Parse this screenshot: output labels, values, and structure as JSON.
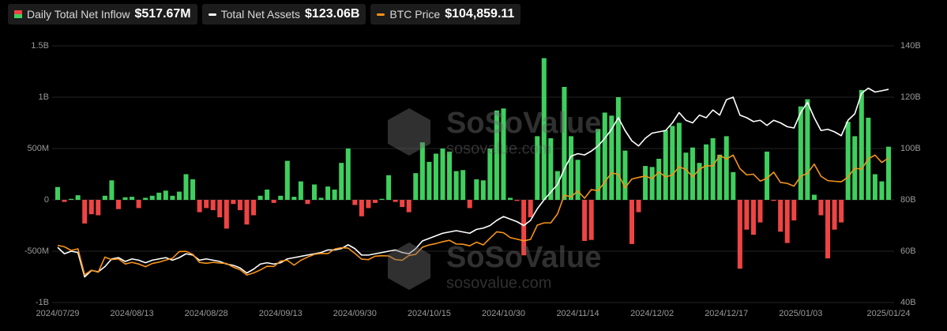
{
  "chart_data": {
    "type": "bar",
    "watermark": [
      "SoSoValue",
      "sosovalue.com"
    ],
    "categories": [
      "2024/07/29",
      null,
      null,
      null,
      null,
      null,
      null,
      null,
      null,
      null,
      null,
      "2024/08/13",
      null,
      null,
      null,
      null,
      null,
      null,
      null,
      null,
      null,
      null,
      "2024/08/28",
      null,
      null,
      null,
      null,
      null,
      null,
      null,
      null,
      null,
      null,
      "2024/09/13",
      null,
      null,
      null,
      null,
      null,
      null,
      null,
      null,
      null,
      null,
      "2024/09/30",
      null,
      null,
      null,
      null,
      null,
      null,
      null,
      null,
      null,
      null,
      "2024/10/15",
      null,
      null,
      null,
      null,
      null,
      null,
      null,
      null,
      null,
      null,
      "2024/10/30",
      null,
      null,
      null,
      null,
      null,
      null,
      null,
      null,
      null,
      null,
      "2024/11/14",
      null,
      null,
      null,
      null,
      null,
      null,
      null,
      null,
      null,
      null,
      "2024/12/02",
      null,
      null,
      null,
      null,
      null,
      null,
      null,
      null,
      null,
      null,
      "2024/12/17",
      null,
      null,
      null,
      null,
      null,
      null,
      null,
      null,
      null,
      null,
      "2025/01/03",
      null,
      null,
      null,
      null,
      null,
      null,
      null,
      null,
      null,
      null,
      null,
      null,
      "2025/01/24"
    ],
    "ylim": [
      -1000,
      1500
    ],
    "yticks": [
      {
        "value": 1500,
        "label": "1.5B"
      },
      {
        "value": 1000,
        "label": "1B"
      },
      {
        "value": 500,
        "label": "500M"
      },
      0,
      {
        "value": -500,
        "label": "-500M"
      },
      {
        "value": -1000,
        "label": "-1B"
      }
    ],
    "y2lim": [
      40,
      140
    ],
    "y2ticks": [
      {
        "value": 140,
        "label": "140B"
      },
      {
        "value": 120,
        "label": "120B"
      },
      {
        "value": 100,
        "label": "100B"
      },
      {
        "value": 80,
        "label": "80B"
      },
      {
        "value": 60,
        "label": "60B"
      },
      {
        "value": 40,
        "label": "40B"
      }
    ],
    "y3lim": [
      41900,
      153700
    ],
    "grid": true,
    "series": [
      {
        "name": "Daily Total Net Inflow",
        "legend_value": "$517.67M",
        "type": "bar",
        "color": "#3fcf5e",
        "negative_color": "#ef4444",
        "values": [
          125,
          -20,
          10,
          45,
          -230,
          -140,
          -150,
          40,
          190,
          -90,
          25,
          30,
          -80,
          20,
          40,
          70,
          90,
          40,
          80,
          250,
          200,
          -120,
          -80,
          -100,
          -170,
          -280,
          -40,
          -100,
          -240,
          -150,
          40,
          100,
          -30,
          40,
          380,
          30,
          180,
          -40,
          150,
          20,
          130,
          100,
          360,
          500,
          -50,
          -160,
          -80,
          -30,
          10,
          240,
          -20,
          -70,
          -120,
          260,
          560,
          370,
          450,
          500,
          470,
          280,
          290,
          -80,
          200,
          190,
          500,
          870,
          890,
          20,
          -10,
          -540,
          -170,
          620,
          1380,
          600,
          280,
          1100,
          620,
          390,
          -400,
          -390,
          690,
          850,
          820,
          1000,
          480,
          -430,
          -120,
          330,
          320,
          400,
          680,
          720,
          750,
          460,
          510,
          360,
          540,
          600,
          440,
          620,
          270,
          -670,
          -290,
          -340,
          -220,
          470,
          -10,
          -310,
          -420,
          -200,
          910,
          980,
          50,
          -150,
          -570,
          -290,
          -220,
          760,
          620,
          1070,
          800,
          250,
          180,
          517.67
        ]
      },
      {
        "name": "Total Net Assets",
        "legend_value": "$123.06B",
        "type": "line",
        "axis": "y2",
        "color": "#ffffff",
        "values": [
          61.5,
          59,
          60,
          59.5,
          50,
          52.5,
          52,
          54,
          57,
          57.5,
          56,
          57,
          56.5,
          55.5,
          56.5,
          57,
          57.5,
          56.5,
          57.5,
          59,
          58.5,
          56.5,
          57,
          56.5,
          56,
          55,
          54.5,
          53.5,
          51.5,
          53,
          55,
          55.5,
          55,
          55.5,
          57,
          57.5,
          58,
          58.5,
          59,
          59.5,
          60.5,
          60.5,
          61,
          62.5,
          61,
          58.5,
          58.5,
          59,
          59.5,
          60,
          60.5,
          59.5,
          59,
          61,
          64,
          65,
          66,
          67,
          67.5,
          68,
          67.5,
          67,
          68.5,
          69,
          70,
          72,
          73.5,
          72.5,
          71.5,
          70,
          72,
          76.5,
          80,
          83,
          86,
          92,
          97,
          98,
          97.5,
          99,
          101,
          104,
          107.5,
          112,
          107,
          103,
          101,
          104,
          106,
          106.5,
          107,
          110,
          114,
          111,
          110,
          113,
          112,
          115,
          113,
          119,
          120,
          113,
          112,
          110.5,
          111,
          109,
          111,
          110,
          108.5,
          108,
          114,
          118,
          112,
          107,
          107.5,
          106.5,
          105,
          111,
          113.5,
          121.5,
          123.5,
          122,
          122.5,
          123.06
        ]
      },
      {
        "name": "BTC Price",
        "legend_value": "$104,859.11",
        "type": "line",
        "axis": "y3",
        "color": "#f7931a",
        "values": [
          66800,
          66200,
          64600,
          65300,
          54000,
          56000,
          55100,
          61700,
          60600,
          60900,
          58700,
          59400,
          58700,
          57500,
          58900,
          59500,
          60400,
          61200,
          64100,
          64200,
          62900,
          59400,
          59000,
          59400,
          59100,
          58900,
          57300,
          56200,
          53900,
          54800,
          56100,
          57700,
          57600,
          60000,
          60300,
          58200,
          60300,
          61700,
          62900,
          63300,
          63200,
          65200,
          65800,
          65600,
          63300,
          60800,
          60600,
          62100,
          62300,
          62200,
          60600,
          60300,
          62400,
          62900,
          66000,
          67000,
          67600,
          68400,
          69000,
          67400,
          67300,
          66600,
          68200,
          67000,
          69900,
          72700,
          72300,
          70200,
          69500,
          68800,
          69400,
          75600,
          76600,
          76600,
          80500,
          88700,
          87900,
          90500,
          87300,
          91100,
          90600,
          94400,
          98400,
          97700,
          91900,
          95700,
          96400,
          97000,
          95800,
          98800,
          96600,
          97500,
          101000,
          99900,
          96600,
          100000,
          101500,
          101400,
          106000,
          104400,
          106100,
          100200,
          97500,
          97800,
          94800,
          96000,
          98700,
          94200,
          93800,
          92600,
          96900,
          98200,
          102200,
          96900,
          95000,
          94700,
          94500,
          96500,
          100500,
          99900,
          104500,
          106100,
          102900,
          104859.11
        ]
      }
    ]
  }
}
